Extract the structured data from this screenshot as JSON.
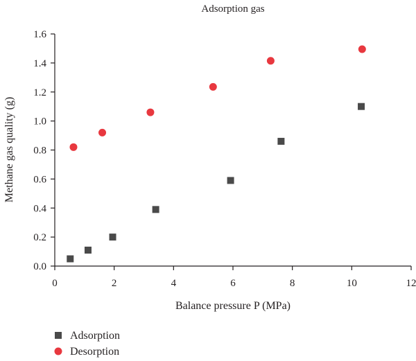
{
  "chart_data": {
    "type": "scatter",
    "title": "Adsorption gas",
    "xlabel": "Balance pressure P (MPa)",
    "ylabel": "Methane gas quality (g)",
    "xlim": [
      0,
      12
    ],
    "ylim": [
      0,
      1.6
    ],
    "xticks": [
      0,
      2,
      4,
      6,
      8,
      10,
      12
    ],
    "yticks": [
      0.0,
      0.2,
      0.4,
      0.6,
      0.8,
      1.0,
      1.2,
      1.4,
      1.6
    ],
    "xtick_labels": [
      "0",
      "2",
      "4",
      "6",
      "8",
      "10",
      "12"
    ],
    "ytick_labels": [
      "0.0",
      "0.2",
      "0.4",
      "0.6",
      "0.8",
      "1.0",
      "1.2",
      "1.4",
      "1.6"
    ],
    "grid": false,
    "legend_position": "bottom-left",
    "series": [
      {
        "name": "Adsorption",
        "marker": "square",
        "color": "#4a4a4a",
        "x": [
          0.52,
          1.12,
          1.95,
          3.4,
          5.92,
          7.62,
          10.32
        ],
        "y": [
          0.05,
          0.11,
          0.2,
          0.39,
          0.59,
          0.86,
          1.1
        ]
      },
      {
        "name": "Desorption",
        "marker": "circle",
        "color": "#e8383f",
        "x": [
          0.63,
          1.6,
          3.22,
          5.33,
          7.27,
          10.35
        ],
        "y": [
          0.82,
          0.92,
          1.06,
          1.235,
          1.415,
          1.495
        ]
      }
    ]
  }
}
